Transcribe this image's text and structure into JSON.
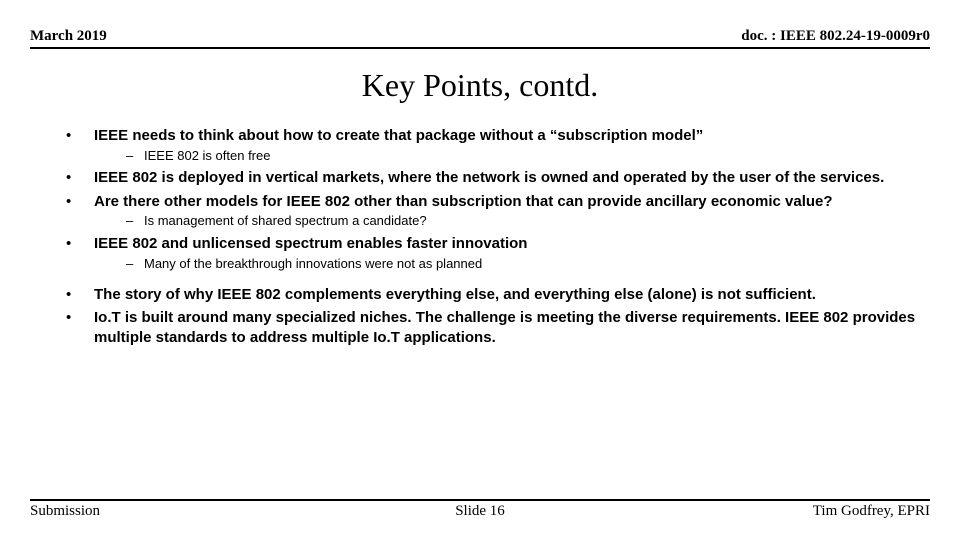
{
  "header": {
    "date": "March 2019",
    "doc": "doc. : IEEE 802.24-19-0009r0"
  },
  "title": "Key Points, contd.",
  "bullets": {
    "b1": "IEEE needs to think about how to create that package without a “subscription model”",
    "b1_s1": "IEEE 802 is often free",
    "b2": "IEEE 802 is deployed in vertical markets, where the network is owned and operated by the user of the services.",
    "b3": "Are there other models for IEEE 802 other than subscription that can provide ancillary economic value?",
    "b3_s1": "Is management of shared spectrum a candidate?",
    "b4": "IEEE 802 and unlicensed spectrum enables faster innovation",
    "b4_s1": "Many of the breakthrough innovations were not as planned",
    "b5": "The story of why IEEE 802 complements everything else, and everything else (alone) is not sufficient.",
    "b6": "Io.T is built around many specialized niches. The challenge is meeting the diverse requirements. IEEE 802 provides multiple standards to address multiple Io.T applications."
  },
  "footer": {
    "left": "Submission",
    "center": "Slide 16",
    "right": "Tim Godfrey, EPRI"
  }
}
